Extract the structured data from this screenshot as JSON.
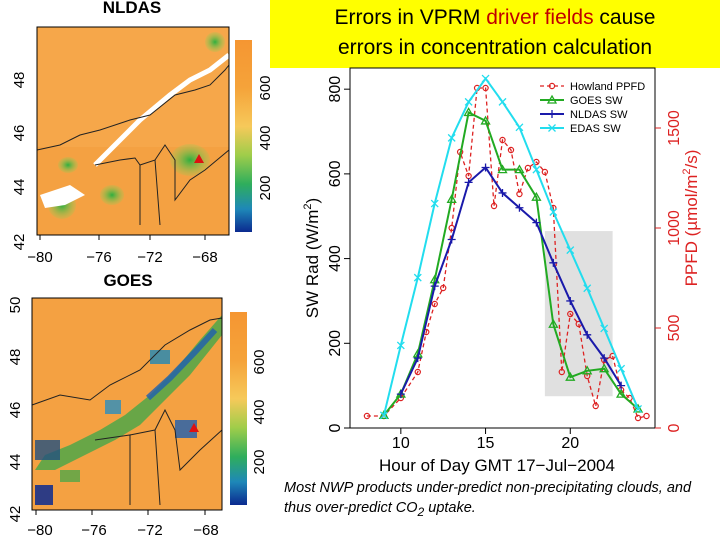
{
  "slide": {
    "title_part1": "Errors in VPRM ",
    "title_red": "driver fields",
    "title_part2": " cause",
    "title_line2": "errors in concentration calculation",
    "caption_part1": "Most NWP products under-predict non-precipitating clouds, and thus over-predict CO",
    "caption_sub": "2",
    "caption_part2": " uptake."
  },
  "maps": [
    {
      "title": "NLDAS",
      "lon_ticks": [
        "−80",
        "−76",
        "−72",
        "−68"
      ],
      "lat_ticks": [
        "42",
        "44",
        "46",
        "48"
      ],
      "colorbar_ticks": [
        "200",
        "400",
        "600"
      ],
      "marker_color": "#dd1111"
    },
    {
      "title": "GOES",
      "lon_ticks": [
        "−80",
        "−76",
        "−72",
        "−68"
      ],
      "lat_ticks": [
        "42",
        "44",
        "46",
        "48",
        "50"
      ],
      "colorbar_ticks": [
        "200",
        "400",
        "600"
      ],
      "marker_color": "#dd1111"
    }
  ],
  "chart_data": {
    "type": "line",
    "xlabel": "Hour of Day GMT 17−Jul−2004",
    "ylabel": "SW Rad (W/m",
    "ylabel_sup": "2",
    "ylabel_end": ")",
    "ylabel2": "PPFD (µmol/m",
    "ylabel2_sup": "2",
    "ylabel2_end": "/s)",
    "xlim": [
      7,
      25
    ],
    "ylim": [
      0,
      850
    ],
    "ylim2": [
      0,
      1800
    ],
    "x_ticks": [
      "10",
      "15",
      "20"
    ],
    "y_ticks": [
      "0",
      "200",
      "400",
      "600",
      "800"
    ],
    "y2_ticks": [
      "0",
      "500",
      "1000",
      "1500"
    ],
    "legend_position": "top-right",
    "shaded_x": [
      18.5,
      22.5
    ],
    "shaded_y": [
      75,
      465
    ],
    "shade_color": "#e0e0e0",
    "series": [
      {
        "name": "Howland PPFD",
        "color": "#dd2222",
        "marker": "circle",
        "dash": true,
        "axis": "right",
        "x": [
          8,
          9,
          10,
          11,
          11.5,
          12,
          12.5,
          13,
          13.5,
          14,
          14.5,
          15,
          15.5,
          16,
          16.5,
          17,
          17.5,
          18,
          18.5,
          19,
          19.5,
          20,
          20.5,
          21,
          21.5,
          22,
          22.5,
          23,
          23.5,
          24,
          24.5
        ],
        "y": [
          60,
          60,
          150,
          280,
          480,
          620,
          700,
          1000,
          1380,
          1260,
          1700,
          1700,
          1110,
          1440,
          1390,
          1170,
          1300,
          1330,
          1280,
          1100,
          280,
          570,
          520,
          260,
          110,
          340,
          360,
          190,
          150,
          50,
          60
        ]
      },
      {
        "name": "GOES SW",
        "color": "#22aa22",
        "marker": "triangle",
        "dash": false,
        "axis": "left",
        "x": [
          9,
          10,
          11,
          12,
          13,
          14,
          15,
          16,
          17,
          18,
          19,
          20,
          21,
          22,
          23,
          24
        ],
        "y": [
          30,
          80,
          175,
          350,
          540,
          745,
          725,
          610,
          610,
          545,
          245,
          120,
          135,
          140,
          80,
          45
        ]
      },
      {
        "name": "NLDAS SW",
        "color": "#1a1aaa",
        "marker": "plus",
        "dash": false,
        "axis": "left",
        "x": [
          10,
          11,
          12,
          13,
          14,
          15,
          16,
          17,
          18,
          19,
          20,
          21,
          22,
          23
        ],
        "y": [
          80,
          165,
          335,
          445,
          580,
          615,
          555,
          520,
          485,
          390,
          300,
          220,
          165,
          100
        ]
      },
      {
        "name": "EDAS SW",
        "color": "#22ddee",
        "marker": "x",
        "dash": false,
        "axis": "left",
        "x": [
          9,
          10,
          11,
          12,
          13,
          14,
          15,
          16,
          17,
          18,
          19,
          20,
          21,
          22,
          23,
          24
        ],
        "y": [
          30,
          195,
          355,
          530,
          685,
          770,
          825,
          770,
          710,
          610,
          510,
          420,
          330,
          235,
          140,
          45
        ]
      }
    ]
  }
}
